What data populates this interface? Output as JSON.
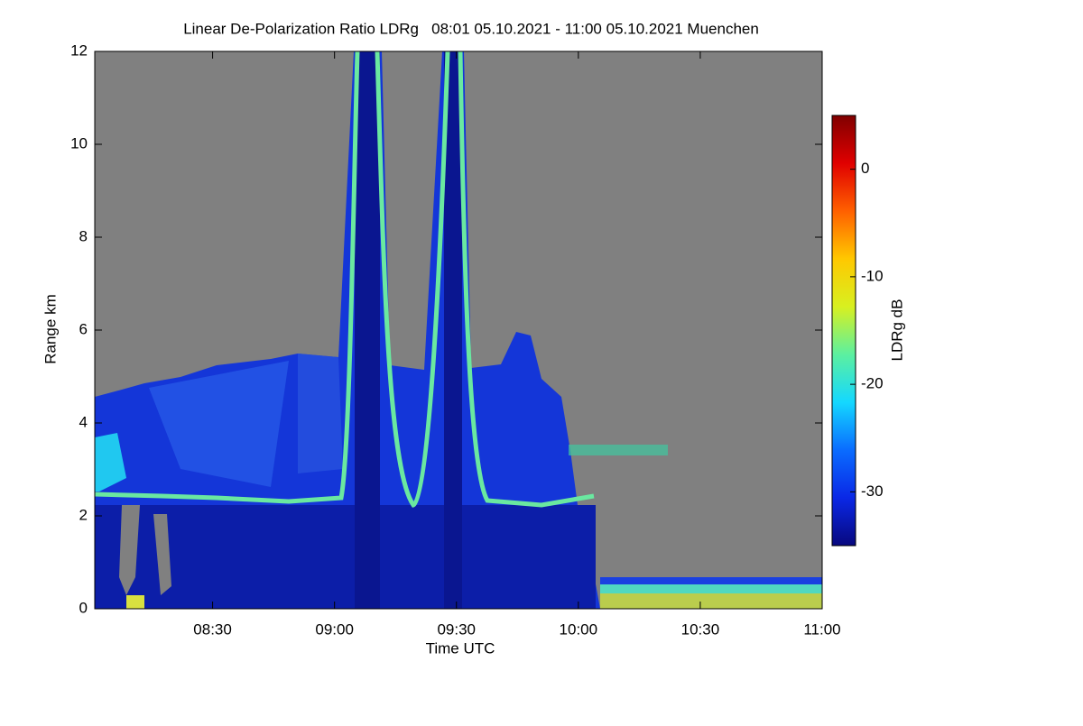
{
  "chart_data": {
    "type": "heatmap",
    "title": "Linear De-Polarization Ratio LDRg   08:01 05.10.2021 - 11:00 05.10.2021 Muenchen",
    "xlabel": "Time UTC",
    "ylabel": "Range km",
    "colorbar_label": "LDRg dB",
    "xlim": [
      "2021-10-05 08:01",
      "2021-10-05 11:00"
    ],
    "xticks": [
      {
        "value": "2021-10-05 08:30",
        "label": "08:30"
      },
      {
        "value": "2021-10-05 09:00",
        "label": "09:00"
      },
      {
        "value": "2021-10-05 09:30",
        "label": "09:30"
      },
      {
        "value": "2021-10-05 10:00",
        "label": "10:00"
      },
      {
        "value": "2021-10-05 10:30",
        "label": "10:30"
      },
      {
        "value": "2021-10-05 11:00",
        "label": "11:00"
      }
    ],
    "ylim": [
      0,
      12
    ],
    "yticks": [
      0,
      2,
      4,
      6,
      8,
      10,
      12
    ],
    "zlim": [
      -35,
      5
    ],
    "zticks": [
      0,
      -10,
      -20,
      -30
    ],
    "colormap": [
      "#08087e",
      "#0a28e6",
      "#0a6cff",
      "#14d8ff",
      "#5cf0a0",
      "#d8f020",
      "#ffc800",
      "#ff6000",
      "#e00000",
      "#800000"
    ],
    "background": "#808080"
  }
}
